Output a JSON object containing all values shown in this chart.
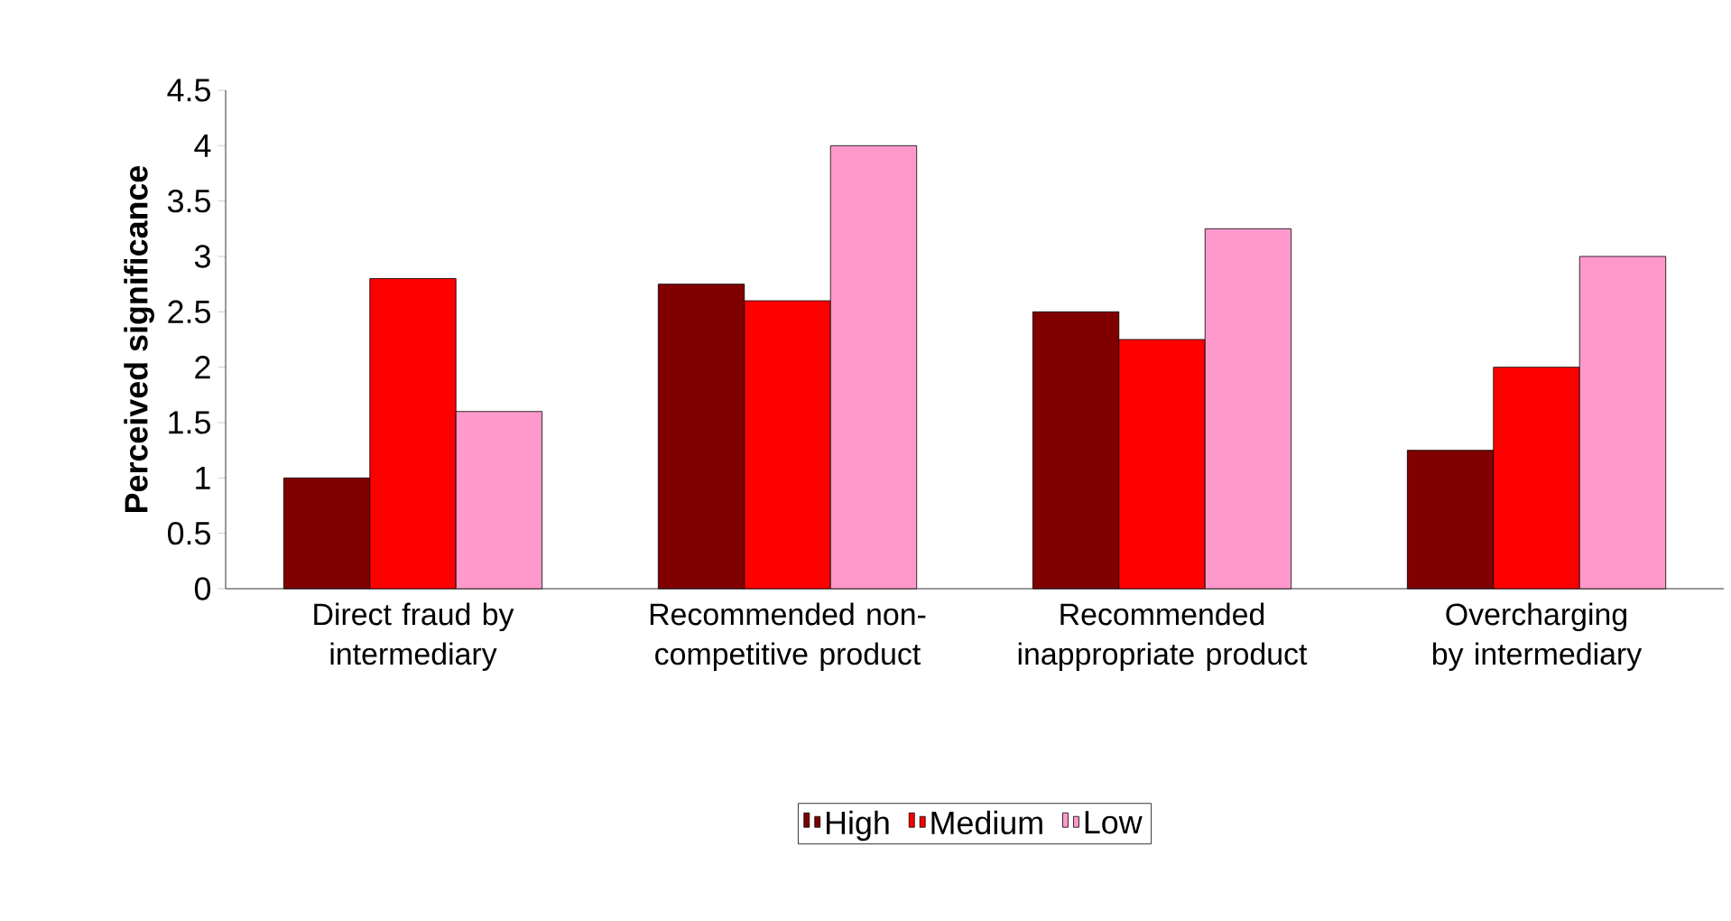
{
  "chart_data": {
    "type": "bar",
    "ylabel": "Perceived significance",
    "categories": [
      "Direct fraud by intermediary",
      "Recommended non-competitive product",
      "Recommended inappropriate product",
      "Overcharging by intermediary"
    ],
    "series": [
      {
        "name": "High",
        "color": "#800000",
        "values": [
          1.0,
          2.75,
          2.5,
          1.25
        ]
      },
      {
        "name": "Medium",
        "color": "#ff0000",
        "values": [
          2.8,
          2.6,
          2.25,
          2.0
        ]
      },
      {
        "name": "Low",
        "color": "#ff99cc",
        "values": [
          1.6,
          4.0,
          3.25,
          3.0
        ]
      }
    ],
    "ylim": [
      0,
      4.5
    ],
    "yticks": [
      0,
      0.5,
      1,
      1.5,
      2,
      2.5,
      3,
      3.5,
      4,
      4.5
    ],
    "grid": false,
    "legend": "bottom"
  }
}
